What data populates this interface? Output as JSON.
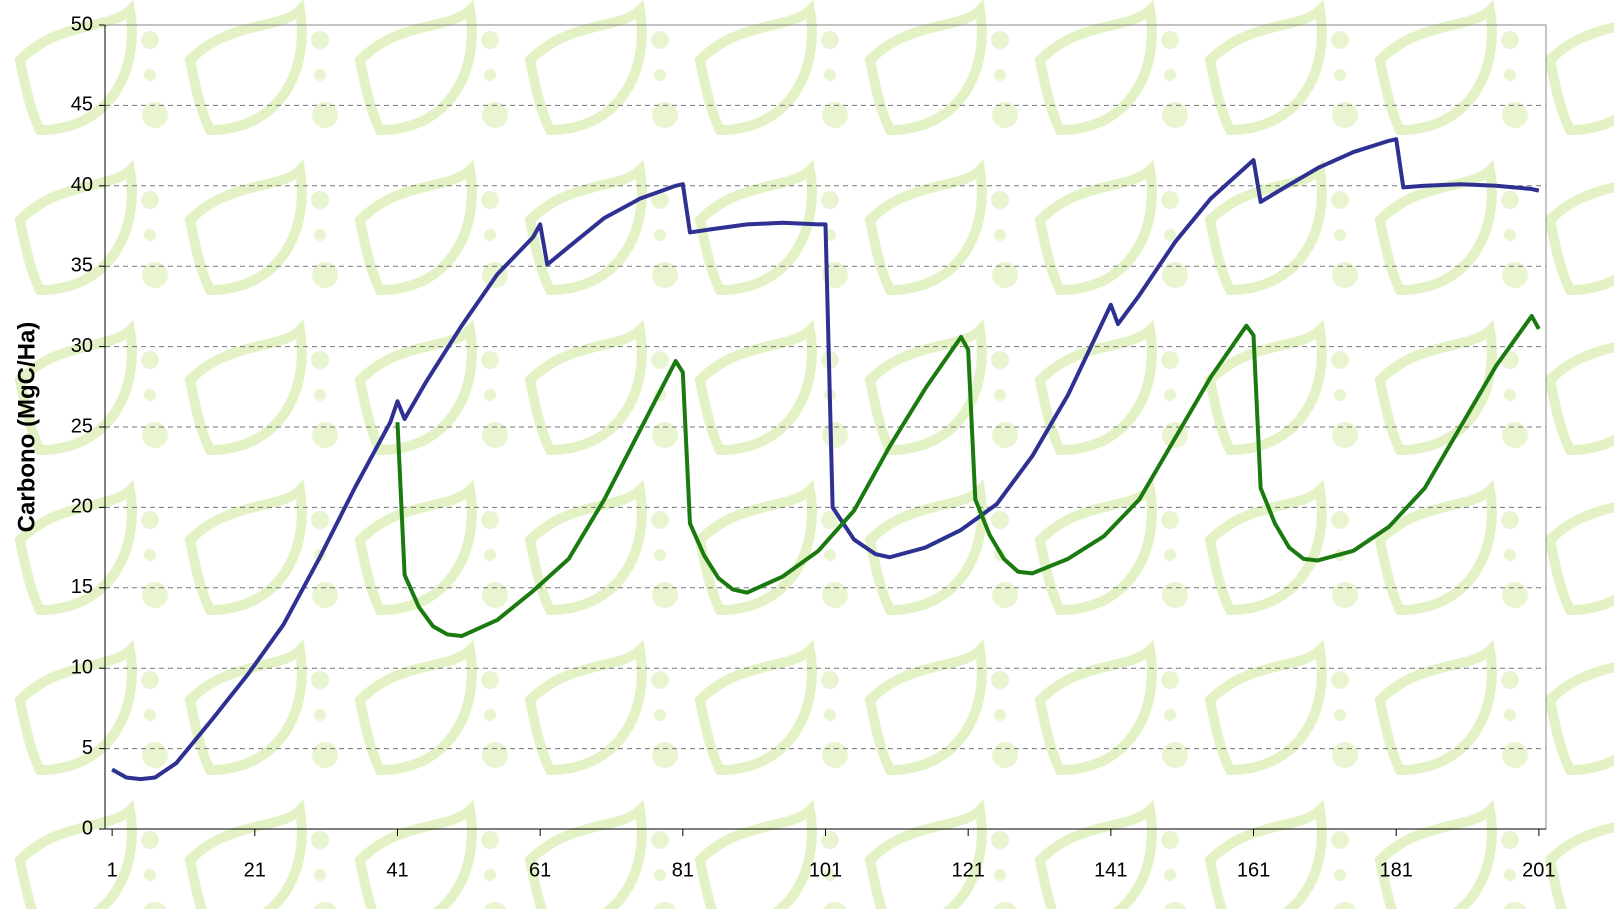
{
  "chart_data": {
    "type": "line",
    "y_label": "Carbono (MgC/Ha)",
    "xlim": [
      0,
      202
    ],
    "xticks": [
      1,
      21,
      41,
      61,
      81,
      101,
      121,
      141,
      161,
      181,
      201
    ],
    "ylim": [
      0,
      50
    ],
    "yticks": [
      0,
      5,
      10,
      15,
      20,
      25,
      30,
      35,
      40,
      45,
      50
    ],
    "grid": true,
    "series": [
      {
        "color": "#2e3192",
        "x": [
          1,
          3,
          5,
          7,
          10,
          15,
          20,
          25,
          30,
          35,
          40,
          41,
          42,
          45,
          50,
          55,
          60,
          61,
          62,
          65,
          70,
          75,
          80,
          81,
          82,
          85,
          90,
          95,
          100,
          101,
          102,
          105,
          108,
          110,
          115,
          120,
          125,
          130,
          135,
          141,
          142,
          145,
          150,
          155,
          160,
          161,
          162,
          165,
          170,
          175,
          180,
          181,
          182,
          185,
          190,
          195,
          200,
          201
        ],
        "values": [
          3.7,
          3.2,
          3.1,
          3.2,
          4.1,
          6.8,
          9.6,
          12.7,
          16.8,
          21.2,
          25.3,
          26.6,
          25.5,
          27.8,
          31.3,
          34.5,
          36.8,
          37.6,
          35.1,
          36.2,
          38.0,
          39.2,
          40.0,
          40.1,
          37.1,
          37.3,
          37.6,
          37.7,
          37.6,
          37.6,
          20.0,
          18.0,
          17.1,
          16.9,
          17.5,
          18.6,
          20.2,
          23.2,
          27.0,
          32.6,
          31.4,
          33.2,
          36.5,
          39.2,
          41.2,
          41.6,
          39.0,
          39.8,
          41.1,
          42.1,
          42.8,
          42.9,
          39.9,
          40.0,
          40.1,
          40.0,
          39.8,
          39.7
        ]
      },
      {
        "color": "#1a7a10",
        "x": [
          41,
          42,
          44,
          46,
          48,
          50,
          55,
          60,
          65,
          70,
          75,
          80,
          81,
          82,
          84,
          86,
          88,
          90,
          95,
          100,
          105,
          110,
          115,
          120,
          121,
          122,
          124,
          126,
          128,
          130,
          135,
          140,
          145,
          150,
          155,
          160,
          161,
          162,
          164,
          166,
          168,
          170,
          175,
          180,
          185,
          190,
          195,
          200,
          201
        ],
        "values": [
          25.3,
          15.8,
          13.8,
          12.6,
          12.1,
          12.0,
          13.0,
          14.8,
          16.8,
          20.5,
          24.8,
          29.1,
          28.4,
          19.0,
          17.0,
          15.6,
          14.9,
          14.7,
          15.7,
          17.3,
          19.8,
          23.8,
          27.4,
          30.6,
          29.8,
          20.5,
          18.3,
          16.8,
          16.0,
          15.9,
          16.8,
          18.2,
          20.5,
          24.3,
          28.1,
          31.3,
          30.7,
          21.2,
          19.0,
          17.5,
          16.8,
          16.7,
          17.3,
          18.8,
          21.2,
          25.0,
          28.8,
          31.9,
          31.1
        ]
      }
    ]
  }
}
